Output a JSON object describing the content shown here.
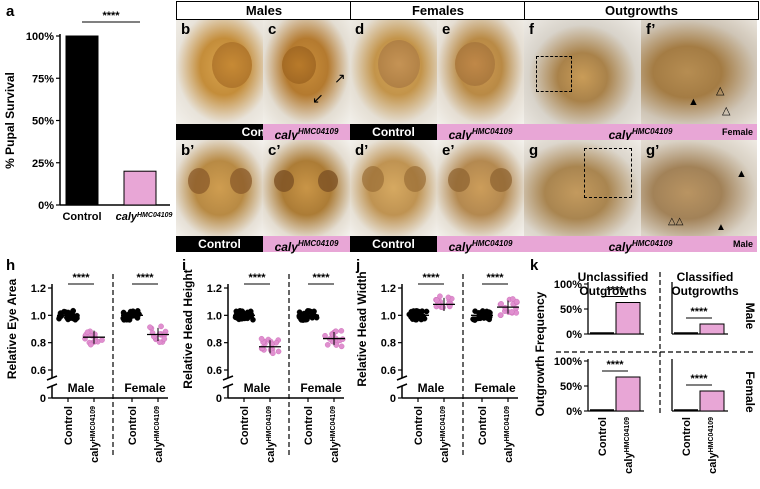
{
  "panel_letters": {
    "a": "a",
    "b": "b",
    "c": "c",
    "d": "d",
    "e": "e",
    "f": "f",
    "f2": "f’",
    "b2": "b’",
    "c2": "c’",
    "d2": "d’",
    "e2": "e’",
    "g": "g",
    "g2": "g’",
    "h": "h",
    "i": "i",
    "j": "j",
    "k": "k"
  },
  "headers": {
    "males": "Males",
    "females": "Females",
    "outgrowths": "Outgrowths"
  },
  "strip_labels": {
    "control": "Control",
    "caly_prefix": "caly",
    "caly_sup": "HMC04109",
    "female": "Female",
    "male": "Male"
  },
  "chart_data": [
    {
      "panel": "a",
      "type": "bar",
      "ylabel": "% Pupal Survival",
      "yticks": [
        "0%",
        "25%",
        "50%",
        "75%",
        "100%"
      ],
      "ylim": [
        0,
        100
      ],
      "categories": [
        "Control",
        "calyHMC04109"
      ],
      "values": [
        100,
        20
      ],
      "colors": [
        "#000000",
        "#e8a6d6"
      ],
      "significance": "****"
    },
    {
      "panel": "h",
      "type": "scatter",
      "ylabel": "Relative Eye Area",
      "yticks": [
        "0",
        "0.6",
        "0.8",
        "1.0",
        "1.2"
      ],
      "groups": [
        "Male",
        "Female"
      ],
      "categories": [
        "Control",
        "caly"
      ],
      "cat_sup": "HMC04109",
      "means": [
        1.0,
        0.84,
        1.0,
        0.86
      ],
      "significance": [
        "****",
        "****"
      ]
    },
    {
      "panel": "i",
      "type": "scatter",
      "ylabel": "Relative Head Height",
      "yticks": [
        "0",
        "0.6",
        "0.8",
        "1.0",
        "1.2"
      ],
      "groups": [
        "Male",
        "Female"
      ],
      "categories": [
        "Control",
        "caly"
      ],
      "cat_sup": "HMC04109",
      "means": [
        1.0,
        0.77,
        1.0,
        0.83
      ],
      "significance": [
        "****",
        "****"
      ]
    },
    {
      "panel": "j",
      "type": "scatter",
      "ylabel": "Relative Head Width",
      "yticks": [
        "0",
        "0.6",
        "0.8",
        "1.0",
        "1.2"
      ],
      "groups": [
        "Male",
        "Female"
      ],
      "categories": [
        "Control",
        "caly"
      ],
      "cat_sup": "HMC04109",
      "means": [
        1.0,
        1.08,
        1.0,
        1.06
      ],
      "significance": [
        "****",
        "****"
      ]
    },
    {
      "panel": "k",
      "type": "bar",
      "ylabel": "Outgrowth Frequency",
      "columns": [
        "Unclassified Outgrowths",
        "Classified Outgrowths"
      ],
      "rows": [
        "Male",
        "Female"
      ],
      "yticks": [
        "0%",
        "50%",
        "100%"
      ],
      "categories": [
        "Control",
        "caly"
      ],
      "cat_sup": "HMC04109",
      "values": {
        "male_unclassified": [
          0,
          63
        ],
        "male_classified": [
          0,
          20
        ],
        "female_unclassified": [
          0,
          68
        ],
        "female_classified": [
          0,
          40
        ]
      },
      "significance": "****"
    }
  ]
}
